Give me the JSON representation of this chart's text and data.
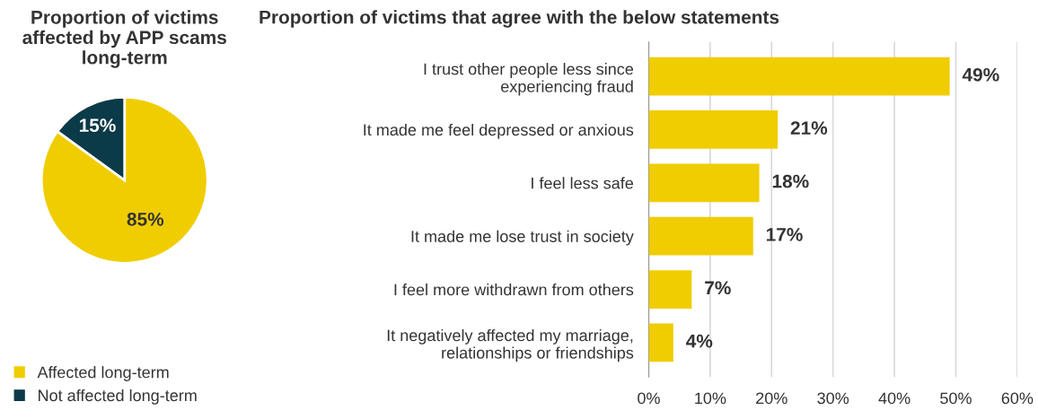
{
  "chart_data": [
    {
      "type": "pie",
      "title": "Proportion of victims\naffected by APP scams\nlong-term",
      "categories": [
        "Affected long-term",
        "Not affected long-term"
      ],
      "values": [
        85,
        15
      ],
      "colors": [
        "#f0cd00",
        "#0b3a48"
      ],
      "value_labels": [
        "85%",
        "15%"
      ],
      "legend": "bottom left"
    },
    {
      "type": "bar",
      "orientation": "horizontal",
      "title": "Proportion of victims that agree with the below statements",
      "categories": [
        "I trust other people less since\nexperiencing fraud",
        "It made me feel depressed or anxious",
        "I feel less safe",
        "It made me lose trust in society",
        "I feel more withdrawn from others",
        "It negatively affected my marriage,\nrelationships or friendships"
      ],
      "values": [
        49,
        21,
        18,
        17,
        7,
        4
      ],
      "color": "#f0cd00",
      "value_labels": [
        "49%",
        "21%",
        "18%",
        "17%",
        "7%",
        "4%"
      ],
      "xlim": [
        0,
        60
      ],
      "xticks": [
        {
          "value": 0,
          "label": "0%"
        },
        {
          "value": 10,
          "label": "10%"
        },
        {
          "value": 20,
          "label": "20%"
        },
        {
          "value": 30,
          "label": "30%"
        },
        {
          "value": 40,
          "label": "40%"
        },
        {
          "value": 50,
          "label": "50%"
        },
        {
          "value": 60,
          "label": "60%"
        }
      ],
      "grid": "x",
      "legend": false
    }
  ]
}
